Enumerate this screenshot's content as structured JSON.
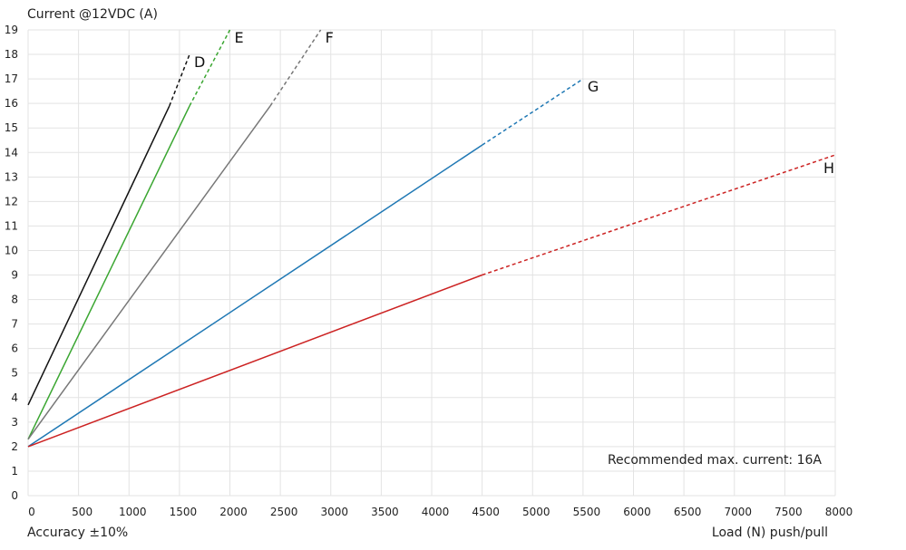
{
  "chart_data": {
    "type": "line",
    "ylabel": "Current @12VDC (A)",
    "xlabel": "Load (N) push/pull",
    "footnote": "Accuracy ±10%",
    "annotation": "Recommended max. current: 16A",
    "xlim": [
      0,
      8000
    ],
    "ylim": [
      0,
      19
    ],
    "x_ticks": [
      0,
      500,
      1000,
      1500,
      2000,
      2500,
      3000,
      3500,
      4000,
      4500,
      5000,
      5500,
      6000,
      6500,
      7000,
      7500,
      8000
    ],
    "y_ticks": [
      0,
      1,
      2,
      3,
      4,
      5,
      6,
      7,
      8,
      9,
      10,
      11,
      12,
      13,
      14,
      15,
      16,
      17,
      18,
      19
    ],
    "grid": true,
    "series": [
      {
        "name": "D",
        "color": "#111111",
        "solid": [
          [
            0,
            3.7
          ],
          [
            1400,
            15.9
          ]
        ],
        "dashed": [
          [
            1400,
            15.9
          ],
          [
            1600,
            18
          ]
        ]
      },
      {
        "name": "E",
        "color": "#3aa631",
        "solid": [
          [
            0,
            2.3
          ],
          [
            1600,
            15.9
          ]
        ],
        "dashed": [
          [
            1600,
            15.9
          ],
          [
            2000,
            19
          ]
        ]
      },
      {
        "name": "F",
        "color": "#777777",
        "solid": [
          [
            0,
            2.3
          ],
          [
            2400,
            15.9
          ]
        ],
        "dashed": [
          [
            2400,
            15.9
          ],
          [
            2900,
            19
          ]
        ]
      },
      {
        "name": "G",
        "color": "#1f78b4",
        "solid": [
          [
            0,
            2.0
          ],
          [
            4500,
            14.3
          ]
        ],
        "dashed": [
          [
            4500,
            14.3
          ],
          [
            5500,
            17
          ]
        ]
      },
      {
        "name": "H",
        "color": "#cc2222",
        "solid": [
          [
            0,
            2.0
          ],
          [
            4500,
            9.0
          ]
        ],
        "dashed": [
          [
            4500,
            9.0
          ],
          [
            8000,
            13.9
          ]
        ]
      }
    ]
  }
}
